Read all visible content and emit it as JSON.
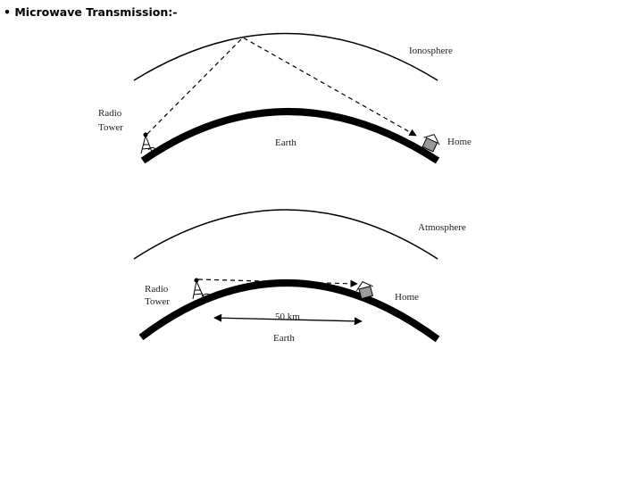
{
  "title": "• Microwave Transmission:-",
  "diagrams": [
    {
      "sky_label": "Ionosphere",
      "tower_label": [
        "Radio",
        "Tower"
      ],
      "earth_label": "Earth",
      "home_label": "Home"
    },
    {
      "sky_label": "Atmosphere",
      "tower_label": [
        "Radio",
        "Tower"
      ],
      "home_label": "Home",
      "distance_label": "50 km",
      "earth_label": "Earth"
    }
  ]
}
